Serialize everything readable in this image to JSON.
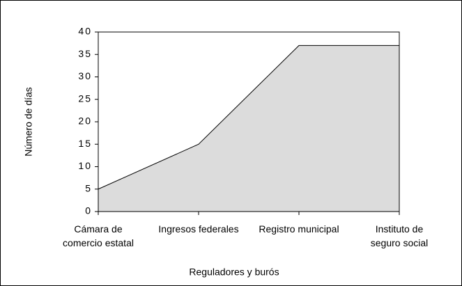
{
  "chart_data": {
    "type": "area",
    "x_label": "Reguladores y burós",
    "y_label": "Número de días",
    "categories": [
      "Cámara de comercio estatal",
      "Ingresos federales",
      "Registro municipal",
      "Instituto de seguro social"
    ],
    "values": [
      5,
      15,
      37,
      37
    ],
    "color": "#dcdcdc",
    "ylim": [
      0,
      40
    ],
    "yticks": [
      0,
      5,
      10,
      15,
      20,
      25,
      30,
      35,
      40
    ]
  }
}
